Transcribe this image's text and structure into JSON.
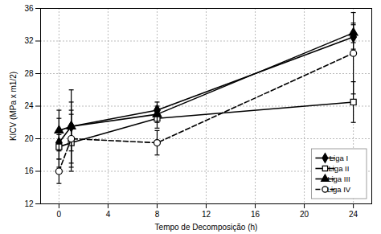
{
  "chart_data": {
    "type": "line",
    "xlabel": "Tempo de Decomposição (h)",
    "ylabel": "KICV (MPa x m1/2)",
    "x": [
      0,
      1,
      8,
      24
    ],
    "series": [
      {
        "name": "Liga I",
        "color": "#000000",
        "marker": "diamond",
        "line_style": "solid",
        "values": [
          19.5,
          21.5,
          23.5,
          32.5
        ],
        "yerr": [
          3.0,
          4.5,
          1.0,
          1.5
        ]
      },
      {
        "name": "Liga II",
        "color": "#000000",
        "marker": "open_square",
        "line_style": "solid",
        "values": [
          19.0,
          19.5,
          22.5,
          24.5
        ],
        "yerr": [
          1.5,
          3.5,
          1.2,
          2.5
        ]
      },
      {
        "name": "Liga III",
        "color": "#000000",
        "marker": "triangle",
        "line_style": "solid",
        "values": [
          21.0,
          21.5,
          23.0,
          33.0
        ],
        "yerr": [
          2.5,
          3.0,
          1.0,
          1.2
        ]
      },
      {
        "name": "Liga IV",
        "color": "#000000",
        "marker": "open_circle",
        "line_style": "dashed",
        "values": [
          16.0,
          20.0,
          19.5,
          30.5
        ],
        "yerr": [
          1.5,
          3.5,
          1.5,
          5.0
        ]
      }
    ],
    "xlim": [
      -1.5,
      25.5
    ],
    "xticks": [
      0,
      4,
      8,
      12,
      16,
      20,
      24
    ],
    "ylim": [
      12,
      36
    ],
    "yticks": [
      12,
      16,
      20,
      24,
      28,
      32,
      36
    ],
    "grid": true,
    "legend": "lower right"
  }
}
